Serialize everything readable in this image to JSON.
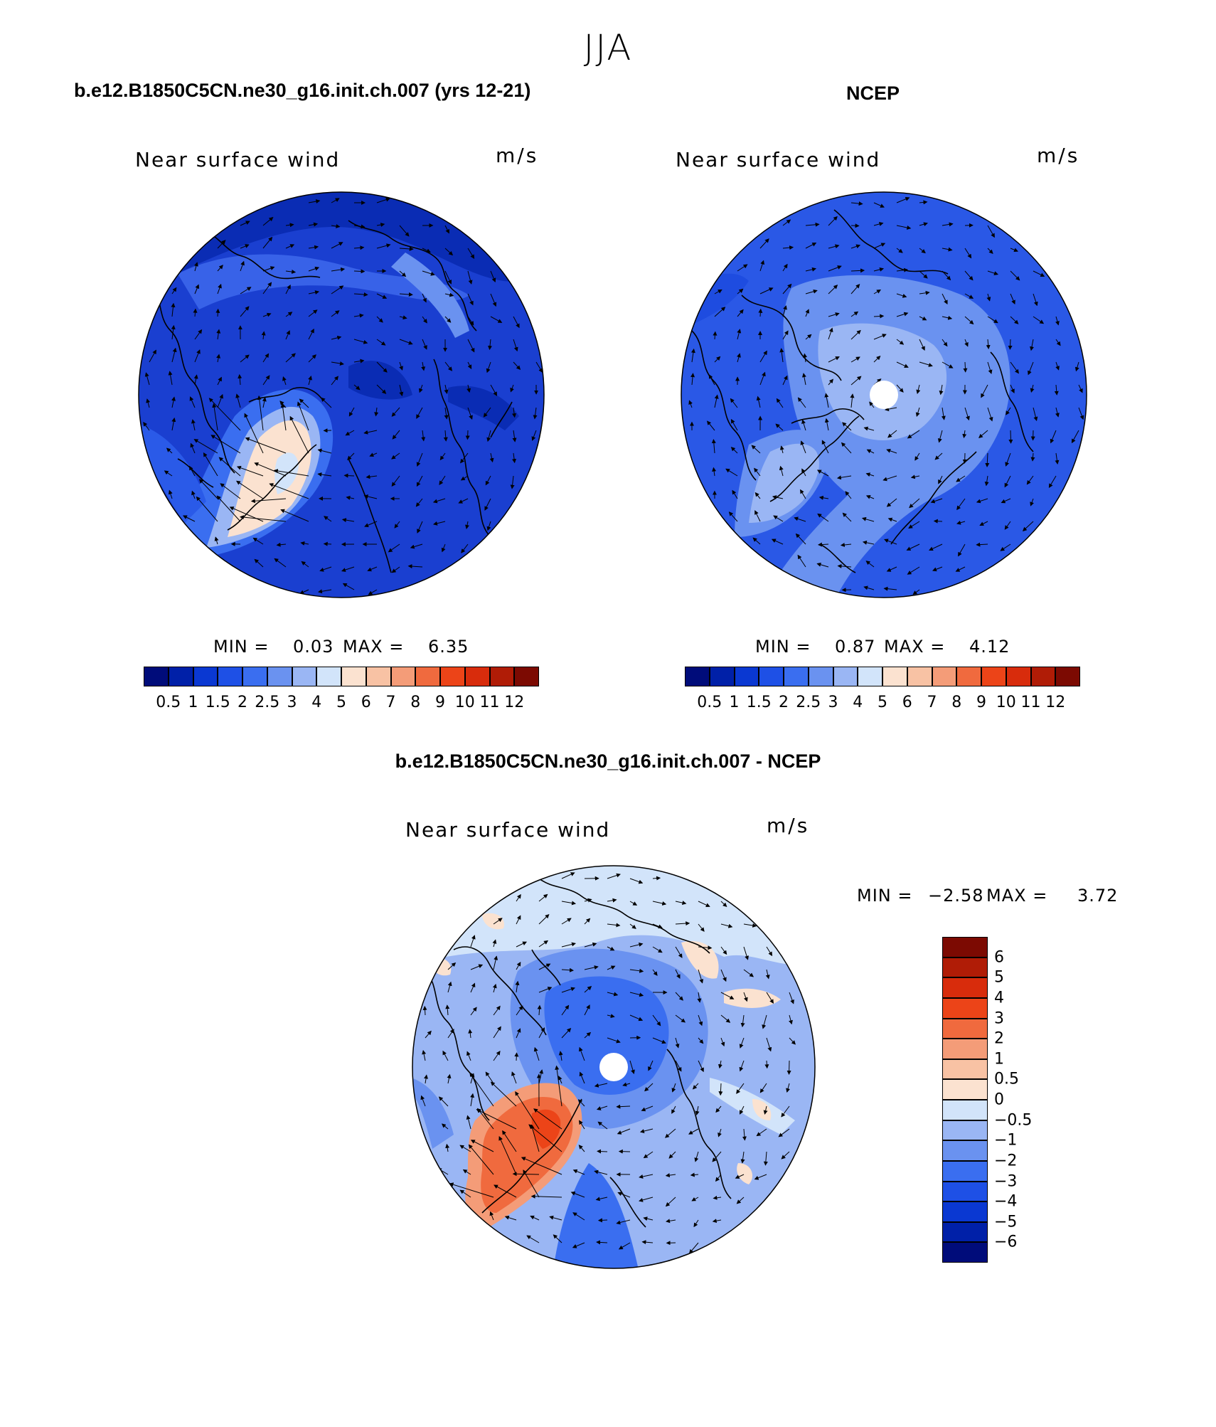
{
  "figure": {
    "season": "JJA"
  },
  "panels": [
    {
      "title": "b.e12.B1850C5CN.ne30_g16.init.ch.007 (yrs 12-21)",
      "variable": "Near surface wind",
      "units": "m/s",
      "min_label": "MIN =",
      "min_value": "0.03",
      "max_label": "MAX =",
      "max_value": "6.35"
    },
    {
      "title": "NCEP",
      "variable": "Near surface wind",
      "units": "m/s",
      "min_label": "MIN =",
      "min_value": "0.87",
      "max_label": "MAX =",
      "max_value": "4.12"
    },
    {
      "title": "b.e12.B1850C5CN.ne30_g16.init.ch.007 - NCEP",
      "variable": "Near surface wind",
      "units": "m/s",
      "min_label": "MIN =",
      "min_value": "−2.58",
      "max_label": "MAX =",
      "max_value": "3.72"
    }
  ],
  "colorbar_abs": {
    "colors": [
      "#000c7a",
      "#0020a8",
      "#0a38d2",
      "#1e50e6",
      "#3a6ef0",
      "#6a92f0",
      "#9ab6f4",
      "#d2e4fa",
      "#fbe2d0",
      "#f8c2a4",
      "#f49c78",
      "#f06a3e",
      "#ec4418",
      "#d82c0c",
      "#b01c06",
      "#7c0a02"
    ],
    "labels": [
      "0.5",
      "1",
      "1.5",
      "2",
      "2.5",
      "3",
      "4",
      "5",
      "6",
      "7",
      "8",
      "9",
      "10",
      "11",
      "12"
    ]
  },
  "colorbar_diff": {
    "colors": [
      "#000c7a",
      "#0020a8",
      "#0a38d2",
      "#1e50e6",
      "#3a6ef0",
      "#6a92f0",
      "#9ab6f4",
      "#d2e4fa",
      "#fbe2d0",
      "#f8c2a4",
      "#f49c78",
      "#f06a3e",
      "#ec4418",
      "#d82c0c",
      "#b01c06",
      "#7c0a02"
    ],
    "labels": [
      "6",
      "5",
      "4",
      "3",
      "2",
      "1",
      "0.5",
      "0",
      "−0.5",
      "−1",
      "−2",
      "−3",
      "−4",
      "−5",
      "−6"
    ]
  }
}
